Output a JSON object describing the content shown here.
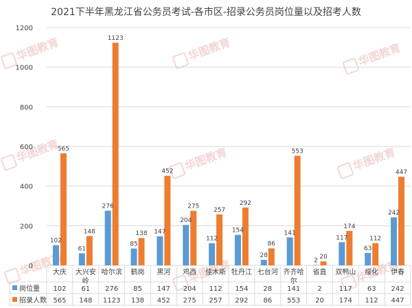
{
  "title": "2021下半年黑龙江省公务员考试-各市区-招录公务员岗位量以及招考人数",
  "watermark": "华图教育",
  "colors": {
    "series_1": "#5b9bd5",
    "series_2": "#ed7d31",
    "grid": "#d9d9d9",
    "text": "#404040"
  },
  "chart_data": {
    "type": "bar",
    "title": "2021下半年黑龙江省公务员考试-各市区-招录公务员岗位量以及招考人数",
    "categories": [
      "大庆",
      "大兴安岭",
      "哈尔滨",
      "鹤岗",
      "黑河",
      "鸡西",
      "佳木斯",
      "牡丹江",
      "七台河",
      "齐齐哈尔",
      "省直",
      "双鸭山",
      "绥化",
      "伊春"
    ],
    "category_display": [
      "大庆",
      [
        "大兴安",
        "岭"
      ],
      "哈尔滨",
      "鹤岗",
      "黑河",
      "鸡西",
      "佳木斯",
      "牡丹江",
      "七台河",
      [
        "齐齐哈",
        "尔"
      ],
      "省直",
      "双鸭山",
      "绥化",
      "伊春"
    ],
    "series": [
      {
        "name": "岗位量",
        "values": [
          102,
          61,
          276,
          85,
          147,
          204,
          112,
          154,
          28,
          141,
          2,
          117,
          63,
          242
        ]
      },
      {
        "name": "招录人数",
        "values": [
          565,
          148,
          1123,
          138,
          452,
          275,
          257,
          292,
          86,
          553,
          20,
          174,
          112,
          447
        ]
      }
    ],
    "ylim": [
      0,
      1200
    ],
    "yticks": [
      0,
      200,
      400,
      600,
      800,
      1000,
      1200
    ],
    "grid": true,
    "legend": "data-table-bottom",
    "data_labels": true
  }
}
